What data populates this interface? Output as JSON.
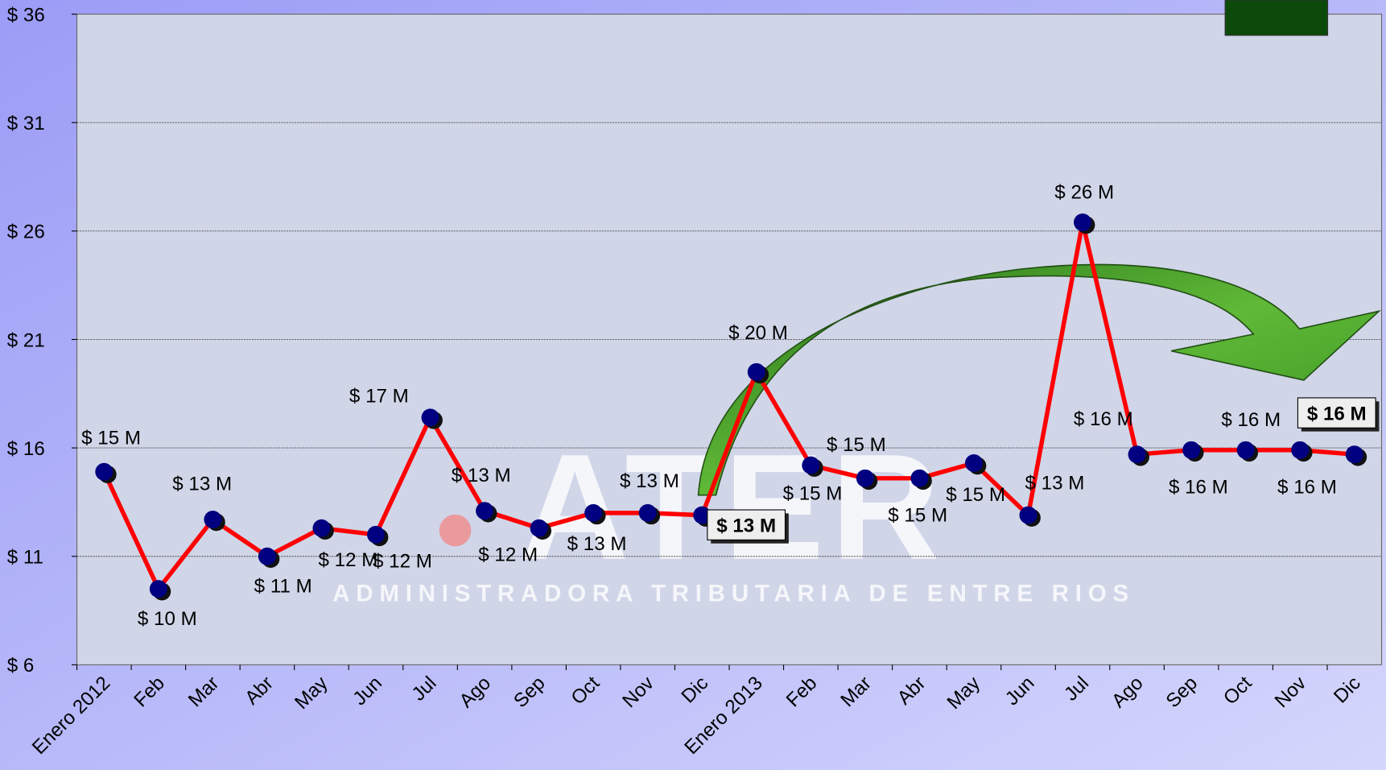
{
  "chart_data": {
    "type": "line",
    "watermark_logo": "ATER",
    "watermark_text": "ADMINISTRADORA TRIBUTARIA DE ENTRE RIOS",
    "categories": [
      "Enero 2012",
      "Feb",
      "Mar",
      "Abr",
      "May",
      "Jun",
      "Jul",
      "Ago",
      "Sep",
      "Oct",
      "Nov",
      "Dic",
      "Enero 2013",
      "Feb",
      "Mar",
      "Abr",
      "May",
      "Jun",
      "Jul",
      "Ago",
      "Sep",
      "Oct",
      "Nov",
      "Dic"
    ],
    "series": [
      {
        "color": "#ff0000",
        "marker_color": "#000080",
        "values": [
          14.9,
          9.5,
          12.7,
          11.0,
          12.3,
          12.0,
          17.4,
          13.1,
          12.3,
          13.0,
          13.0,
          12.9,
          19.5,
          15.2,
          14.6,
          14.6,
          15.3,
          12.9,
          26.4,
          15.7,
          15.9,
          15.9,
          15.9,
          15.7
        ],
        "value_labels": [
          "$ 15 M",
          "$ 10 M",
          "$ 13 M",
          "$ 11 M",
          "$ 12 M",
          "$ 12 M",
          "$ 17 M",
          "$ 13 M",
          "$ 12 M",
          "$ 13 M",
          "$ 13 M",
          "$ 13 M",
          "$ 20 M",
          "$ 15 M",
          "$ 15 M",
          "$ 15 M",
          "$ 15 M",
          "$ 13 M",
          "$ 26 M",
          "$ 16 M",
          "$ 16 M",
          "$ 16 M",
          "$ 16 M",
          "$ 16 M"
        ]
      }
    ],
    "ylim": [
      6,
      36
    ],
    "yticks": [
      {
        "value": 6,
        "label": "$ 6"
      },
      {
        "value": 11,
        "label": "$ 11"
      },
      {
        "value": 16,
        "label": "$ 16"
      },
      {
        "value": 21,
        "label": "$ 21"
      },
      {
        "value": 26,
        "label": "$ 26"
      },
      {
        "value": 31,
        "label": "$ 31"
      },
      {
        "value": 36,
        "label": "$ 36"
      }
    ],
    "grid": true
  }
}
